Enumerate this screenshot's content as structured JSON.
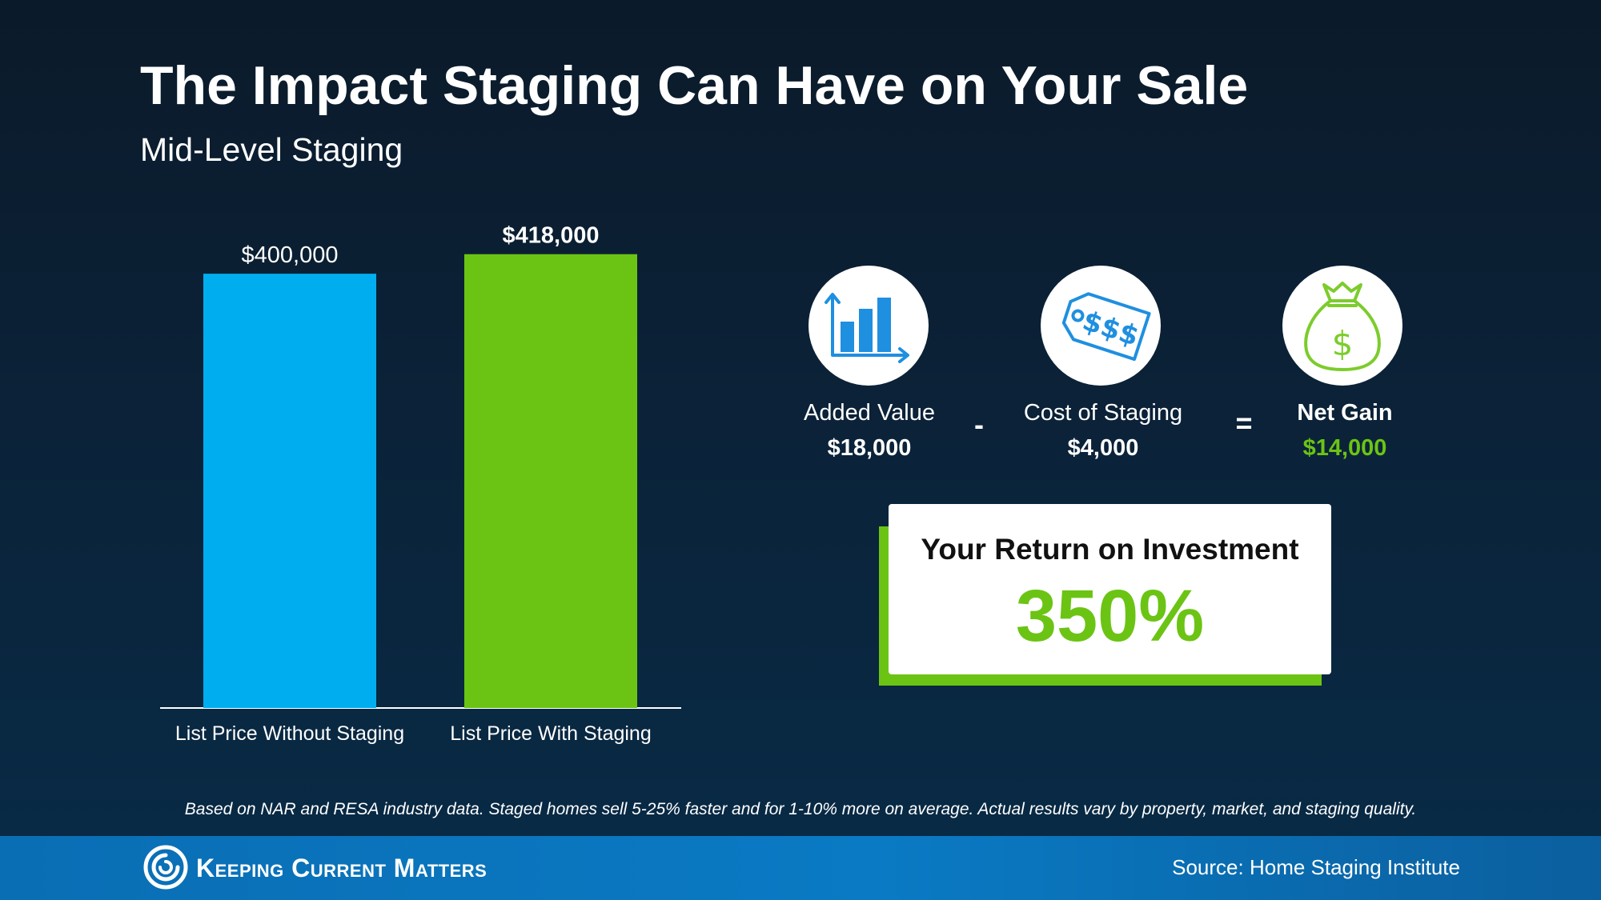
{
  "header": {
    "title": "The Impact Staging Can Have on Your Sale",
    "subtitle": "Mid-Level Staging"
  },
  "chart_data": {
    "type": "bar",
    "categories": [
      "List Price Without Staging",
      "List Price With Staging"
    ],
    "values": [
      400000,
      418000
    ],
    "value_labels": [
      "$400,000",
      "$418,000"
    ],
    "colors": [
      "#00aeef",
      "#6bc414"
    ],
    "ylim": [
      0,
      420000
    ],
    "grid": false
  },
  "equation": {
    "items": [
      {
        "icon": "bar-chart-icon",
        "label": "Added Value",
        "value": "$18,000"
      },
      {
        "icon": "price-tag-icon",
        "label": "Cost of Staging",
        "value": "$4,000"
      },
      {
        "icon": "money-bag-icon",
        "label": "Net Gain",
        "value": "$14,000"
      }
    ],
    "minus": "-",
    "equals": "="
  },
  "roi": {
    "title": "Your Return on Investment",
    "value": "350%"
  },
  "footnote": "Based on NAR and RESA industry data. Staged homes sell 5-25% faster and for 1-10% more on average. Actual results vary by property, market, and staging quality.",
  "footer": {
    "brand": "Keeping Current Matters",
    "source": "Source: Home Staging Institute"
  },
  "colors": {
    "accent_blue": "#00aeef",
    "accent_green": "#6bc414",
    "footer_blue": "#0a6eb4"
  }
}
